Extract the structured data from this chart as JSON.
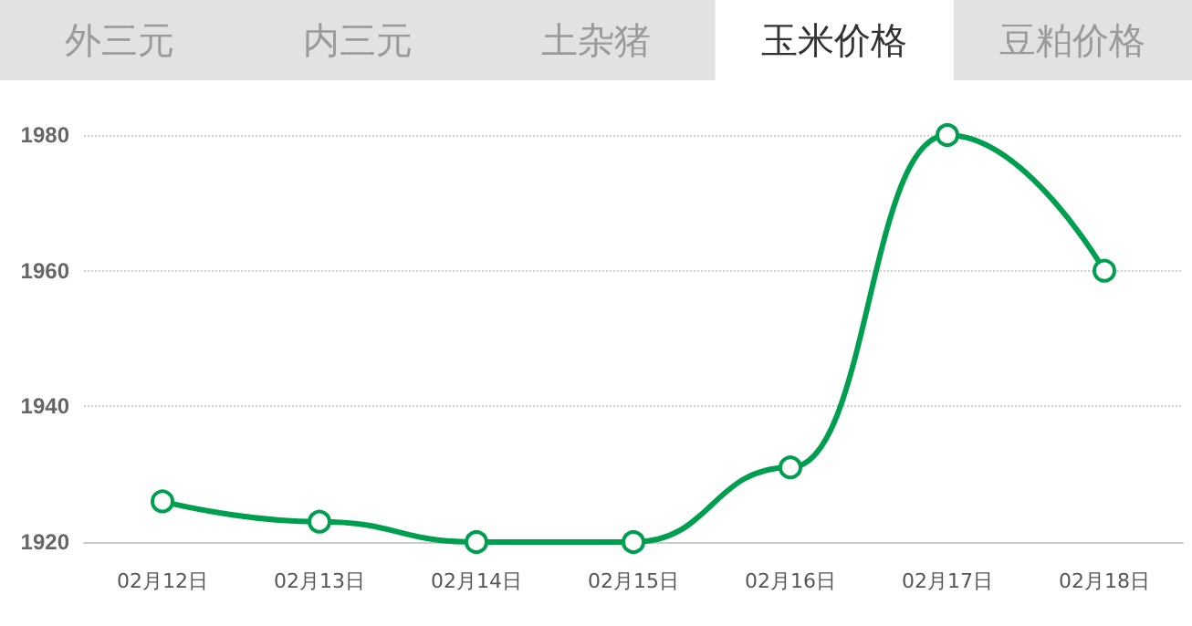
{
  "chart_data": {
    "type": "line",
    "title": "玉米价格",
    "annotations": [
      "外三元",
      "内三元",
      "土杂猪",
      "豆粕价格"
    ],
    "categories": [
      "02月12日",
      "02月13日",
      "02月14日",
      "02月15日",
      "02月16日",
      "02月17日",
      "02月18日"
    ],
    "series": [
      {
        "color": "#009e4f",
        "values": [
          1926,
          1923,
          1920,
          1920,
          1931,
          1980,
          1960
        ]
      }
    ],
    "ylim": [
      1920,
      1980
    ],
    "yticks": [
      1920,
      1940,
      1960,
      1980
    ],
    "grid": "y",
    "marker": "circle",
    "line_style": "solid"
  }
}
